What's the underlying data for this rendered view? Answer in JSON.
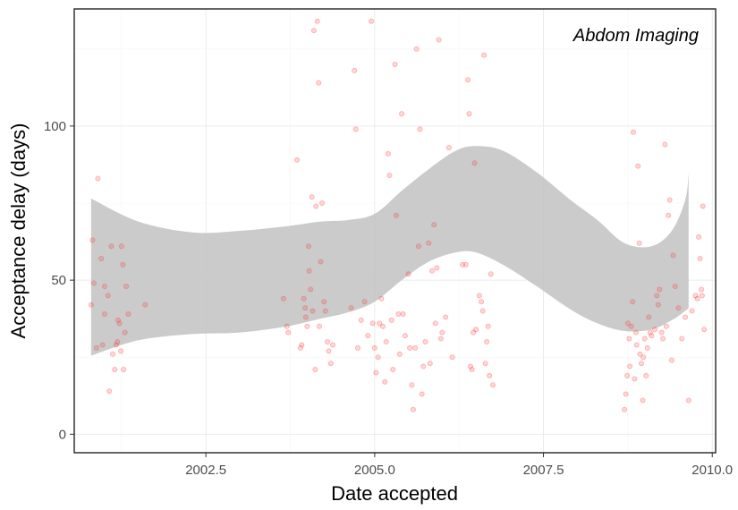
{
  "chart_data": {
    "type": "scatter",
    "title": "",
    "annotation": "Abdom Imaging",
    "xlabel": "Date accepted",
    "ylabel": "Acceptance delay (days)",
    "xlim": [
      2000.55,
      2010.05
    ],
    "ylim": [
      -6,
      138
    ],
    "xticks": [
      2002.5,
      2005.0,
      2007.5,
      2010.0
    ],
    "xtick_labels": [
      "2002.5",
      "2005.0",
      "2007.5",
      "2010.0"
    ],
    "yticks": [
      0,
      50,
      100
    ],
    "ytick_labels": [
      "0",
      "50",
      "100"
    ],
    "grid": true,
    "legend": "none",
    "colors": {
      "points": "#ff3333",
      "band": "#c2c2c2",
      "panel_border": "#333333",
      "grid_major": "#ebebeb",
      "grid_minor": "#f5f5f5"
    },
    "smooth_band": {
      "x": [
        2000.8,
        2001.5,
        2002.3,
        2003.0,
        2003.7,
        2004.2,
        2004.6,
        2005.0,
        2005.4,
        2005.8,
        2006.2,
        2006.5,
        2006.9,
        2007.4,
        2007.9,
        2008.3,
        2008.7,
        2009.1,
        2009.4,
        2009.6,
        2009.65
      ],
      "upper": [
        76.5,
        69,
        65.5,
        66,
        67.5,
        69,
        69.5,
        71.5,
        79,
        86,
        92,
        93.5,
        92,
        85,
        76,
        69.5,
        62,
        61,
        66,
        76,
        84.5
      ],
      "lower": [
        25.5,
        30.5,
        32.5,
        33,
        35,
        37.5,
        39.5,
        43,
        50,
        56,
        59,
        59,
        55,
        48,
        40.5,
        36,
        33.5,
        34,
        37,
        40,
        41
      ]
    },
    "points": [
      [
        2000.8,
        42
      ],
      [
        2000.82,
        63
      ],
      [
        2000.84,
        49
      ],
      [
        2000.88,
        28
      ],
      [
        2000.9,
        83
      ],
      [
        2000.95,
        57
      ],
      [
        2000.97,
        29
      ],
      [
        2001.0,
        48
      ],
      [
        2001.0,
        39
      ],
      [
        2001.05,
        45
      ],
      [
        2001.07,
        14
      ],
      [
        2001.1,
        61
      ],
      [
        2001.12,
        26
      ],
      [
        2001.15,
        21
      ],
      [
        2001.17,
        29
      ],
      [
        2001.19,
        30
      ],
      [
        2001.2,
        37
      ],
      [
        2001.22,
        36
      ],
      [
        2001.24,
        27
      ],
      [
        2001.25,
        61
      ],
      [
        2001.27,
        55
      ],
      [
        2001.28,
        21
      ],
      [
        2001.3,
        33
      ],
      [
        2001.32,
        48
      ],
      [
        2001.35,
        39
      ],
      [
        2001.6,
        42
      ],
      [
        2003.65,
        44
      ],
      [
        2003.7,
        35
      ],
      [
        2003.72,
        33
      ],
      [
        2003.85,
        89
      ],
      [
        2003.9,
        28
      ],
      [
        2003.92,
        29
      ],
      [
        2003.95,
        44
      ],
      [
        2003.97,
        41
      ],
      [
        2003.98,
        38
      ],
      [
        2004.0,
        35
      ],
      [
        2004.02,
        61
      ],
      [
        2004.03,
        53
      ],
      [
        2004.05,
        47
      ],
      [
        2004.07,
        77
      ],
      [
        2004.08,
        40
      ],
      [
        2004.1,
        131
      ],
      [
        2004.12,
        21
      ],
      [
        2004.13,
        74
      ],
      [
        2004.15,
        134
      ],
      [
        2004.17,
        114
      ],
      [
        2004.18,
        35
      ],
      [
        2004.2,
        56
      ],
      [
        2004.22,
        75
      ],
      [
        2004.25,
        43
      ],
      [
        2004.27,
        40
      ],
      [
        2004.3,
        30
      ],
      [
        2004.32,
        27
      ],
      [
        2004.35,
        23
      ],
      [
        2004.38,
        29
      ],
      [
        2004.65,
        41
      ],
      [
        2004.7,
        118
      ],
      [
        2004.72,
        99
      ],
      [
        2004.75,
        28
      ],
      [
        2004.8,
        37
      ],
      [
        2004.85,
        43
      ],
      [
        2004.9,
        32
      ],
      [
        2004.95,
        134
      ],
      [
        2004.97,
        36
      ],
      [
        2005.0,
        28
      ],
      [
        2005.02,
        20
      ],
      [
        2005.05,
        25
      ],
      [
        2005.07,
        36
      ],
      [
        2005.1,
        44
      ],
      [
        2005.12,
        35
      ],
      [
        2005.15,
        17
      ],
      [
        2005.17,
        30
      ],
      [
        2005.2,
        91
      ],
      [
        2005.22,
        84
      ],
      [
        2005.25,
        37
      ],
      [
        2005.27,
        21
      ],
      [
        2005.3,
        120
      ],
      [
        2005.32,
        71
      ],
      [
        2005.35,
        39
      ],
      [
        2005.37,
        26
      ],
      [
        2005.4,
        104
      ],
      [
        2005.42,
        39
      ],
      [
        2005.45,
        32
      ],
      [
        2005.5,
        52
      ],
      [
        2005.52,
        28
      ],
      [
        2005.55,
        16
      ],
      [
        2005.57,
        8
      ],
      [
        2005.6,
        28
      ],
      [
        2005.62,
        125
      ],
      [
        2005.65,
        61
      ],
      [
        2005.67,
        99
      ],
      [
        2005.7,
        13
      ],
      [
        2005.72,
        22
      ],
      [
        2005.75,
        30
      ],
      [
        2005.8,
        62
      ],
      [
        2005.82,
        23
      ],
      [
        2005.85,
        53
      ],
      [
        2005.88,
        68
      ],
      [
        2005.9,
        36
      ],
      [
        2005.92,
        54
      ],
      [
        2005.95,
        128
      ],
      [
        2005.98,
        31
      ],
      [
        2006.0,
        33
      ],
      [
        2006.05,
        38
      ],
      [
        2006.1,
        93
      ],
      [
        2006.15,
        25
      ],
      [
        2006.3,
        55
      ],
      [
        2006.35,
        55
      ],
      [
        2006.38,
        115
      ],
      [
        2006.4,
        104
      ],
      [
        2006.42,
        22
      ],
      [
        2006.44,
        21
      ],
      [
        2006.46,
        33
      ],
      [
        2006.48,
        88
      ],
      [
        2006.5,
        34
      ],
      [
        2006.55,
        45
      ],
      [
        2006.58,
        43
      ],
      [
        2006.6,
        40
      ],
      [
        2006.62,
        123
      ],
      [
        2006.64,
        23
      ],
      [
        2006.66,
        30
      ],
      [
        2006.68,
        35
      ],
      [
        2006.7,
        19
      ],
      [
        2006.72,
        52
      ],
      [
        2006.75,
        16
      ],
      [
        2008.7,
        8
      ],
      [
        2008.72,
        13
      ],
      [
        2008.74,
        19
      ],
      [
        2008.75,
        36
      ],
      [
        2008.77,
        31
      ],
      [
        2008.78,
        22
      ],
      [
        2008.8,
        35
      ],
      [
        2008.82,
        43
      ],
      [
        2008.83,
        98
      ],
      [
        2008.85,
        18
      ],
      [
        2008.87,
        33
      ],
      [
        2008.88,
        29
      ],
      [
        2008.9,
        87
      ],
      [
        2008.92,
        62
      ],
      [
        2008.93,
        26
      ],
      [
        2008.95,
        23
      ],
      [
        2008.97,
        11
      ],
      [
        2008.98,
        25
      ],
      [
        2009.0,
        31
      ],
      [
        2009.02,
        19
      ],
      [
        2009.04,
        28
      ],
      [
        2009.06,
        38
      ],
      [
        2009.08,
        33
      ],
      [
        2009.1,
        32
      ],
      [
        2009.15,
        34
      ],
      [
        2009.18,
        45
      ],
      [
        2009.2,
        42
      ],
      [
        2009.22,
        47
      ],
      [
        2009.25,
        33
      ],
      [
        2009.27,
        31
      ],
      [
        2009.3,
        94
      ],
      [
        2009.32,
        35
      ],
      [
        2009.35,
        71
      ],
      [
        2009.37,
        76
      ],
      [
        2009.4,
        24
      ],
      [
        2009.42,
        58
      ],
      [
        2009.45,
        48
      ],
      [
        2009.5,
        41
      ],
      [
        2009.55,
        31
      ],
      [
        2009.6,
        38
      ],
      [
        2009.65,
        11
      ],
      [
        2009.7,
        40
      ],
      [
        2009.75,
        45
      ],
      [
        2009.78,
        44
      ],
      [
        2009.8,
        64
      ],
      [
        2009.82,
        57
      ],
      [
        2009.84,
        47
      ],
      [
        2009.85,
        45
      ],
      [
        2009.86,
        74
      ],
      [
        2009.88,
        34
      ]
    ]
  }
}
